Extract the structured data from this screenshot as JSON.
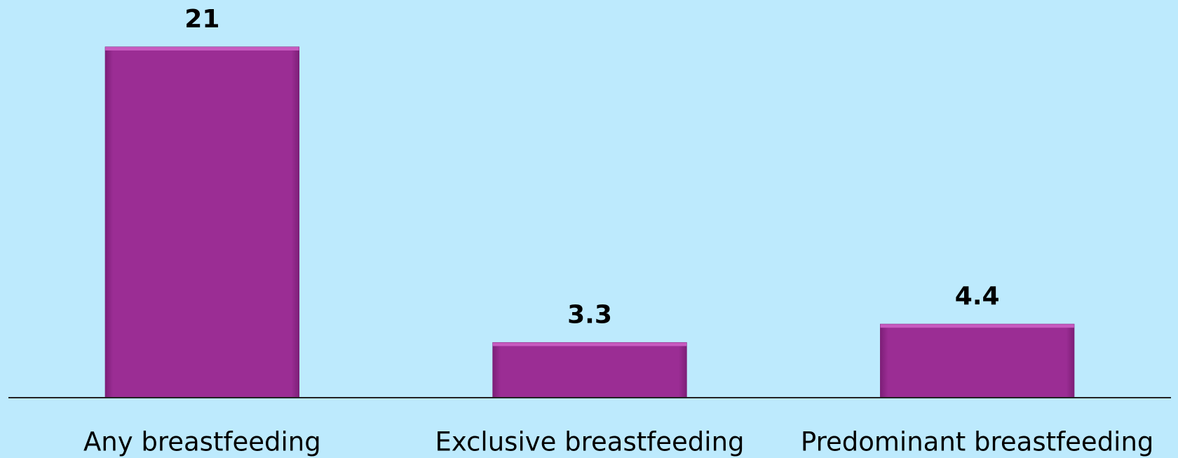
{
  "chart_data": {
    "type": "bar",
    "categories": [
      "Any breastfeeding",
      "Exclusive breastfeeding",
      "Predominant breastfeeding"
    ],
    "values": [
      21,
      3.3,
      4.4
    ],
    "color": "#9b2d94",
    "ylim": [
      0,
      21
    ]
  }
}
